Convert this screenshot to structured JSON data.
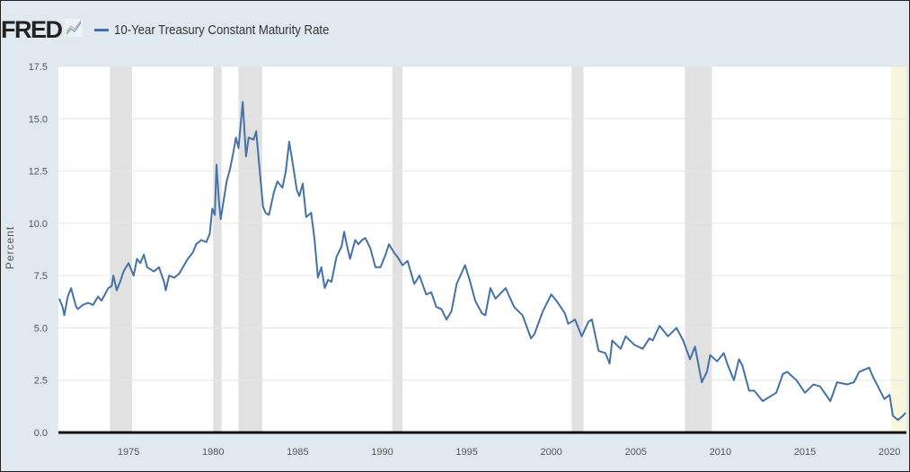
{
  "header": {
    "logo": "FRED",
    "logo_icon": "chart-line-icon"
  },
  "chart_data": {
    "type": "line",
    "title": "10-Year Treasury Constant Maturity Rate",
    "xlabel": "",
    "ylabel": "Percent",
    "xlim": [
      1970.85,
      2021.0
    ],
    "ylim": [
      0,
      17.5
    ],
    "yticks": [
      "0.0",
      "2.5",
      "5.0",
      "7.5",
      "10.0",
      "12.5",
      "15.0",
      "17.5"
    ],
    "xticks": [
      "1975",
      "1980",
      "1985",
      "1990",
      "1995",
      "2000",
      "2005",
      "2010",
      "2015",
      "2020"
    ],
    "grid": true,
    "legend": "top-left",
    "line_color": "#4572a7",
    "recessions": [
      [
        1973.9,
        1975.2
      ],
      [
        1980.0,
        1980.5
      ],
      [
        1981.5,
        1982.9
      ],
      [
        1990.6,
        1991.2
      ],
      [
        2001.2,
        2001.9
      ],
      [
        2007.9,
        2009.5
      ]
    ],
    "current_recession": [
      2020.1,
      2021.0
    ],
    "series": [
      {
        "name": "10-Year Treasury Constant Maturity Rate",
        "points": [
          [
            1970.9,
            6.4
          ],
          [
            1971.1,
            6.0
          ],
          [
            1971.2,
            5.6
          ],
          [
            1971.4,
            6.5
          ],
          [
            1971.6,
            6.9
          ],
          [
            1971.9,
            6.0
          ],
          [
            1972.0,
            5.9
          ],
          [
            1972.3,
            6.1
          ],
          [
            1972.6,
            6.2
          ],
          [
            1972.9,
            6.1
          ],
          [
            1973.2,
            6.5
          ],
          [
            1973.4,
            6.3
          ],
          [
            1973.6,
            6.6
          ],
          [
            1973.8,
            6.9
          ],
          [
            1974.0,
            7.0
          ],
          [
            1974.1,
            7.5
          ],
          [
            1974.3,
            6.8
          ],
          [
            1974.5,
            7.2
          ],
          [
            1974.7,
            7.7
          ],
          [
            1975.0,
            8.1
          ],
          [
            1975.3,
            7.5
          ],
          [
            1975.5,
            8.3
          ],
          [
            1975.7,
            8.1
          ],
          [
            1975.9,
            8.5
          ],
          [
            1976.1,
            7.9
          ],
          [
            1976.5,
            7.7
          ],
          [
            1976.8,
            7.9
          ],
          [
            1977.1,
            7.2
          ],
          [
            1977.2,
            6.8
          ],
          [
            1977.4,
            7.5
          ],
          [
            1977.7,
            7.4
          ],
          [
            1978.0,
            7.6
          ],
          [
            1978.5,
            8.3
          ],
          [
            1978.8,
            8.6
          ],
          [
            1979.0,
            9.0
          ],
          [
            1979.3,
            9.2
          ],
          [
            1979.6,
            9.1
          ],
          [
            1979.8,
            9.5
          ],
          [
            1979.95,
            10.7
          ],
          [
            1980.1,
            10.4
          ],
          [
            1980.2,
            12.8
          ],
          [
            1980.35,
            11.0
          ],
          [
            1980.45,
            10.2
          ],
          [
            1980.8,
            12.0
          ],
          [
            1981.0,
            12.6
          ],
          [
            1981.2,
            13.4
          ],
          [
            1981.35,
            14.1
          ],
          [
            1981.5,
            13.6
          ],
          [
            1981.75,
            15.8
          ],
          [
            1981.95,
            13.2
          ],
          [
            1982.1,
            14.1
          ],
          [
            1982.4,
            14.0
          ],
          [
            1982.55,
            14.4
          ],
          [
            1982.7,
            13.0
          ],
          [
            1982.95,
            10.8
          ],
          [
            1983.1,
            10.5
          ],
          [
            1983.3,
            10.4
          ],
          [
            1983.6,
            11.5
          ],
          [
            1983.8,
            12.0
          ],
          [
            1984.1,
            11.7
          ],
          [
            1984.3,
            12.5
          ],
          [
            1984.5,
            13.9
          ],
          [
            1984.7,
            12.9
          ],
          [
            1984.95,
            11.6
          ],
          [
            1985.1,
            11.3
          ],
          [
            1985.3,
            11.9
          ],
          [
            1985.5,
            10.3
          ],
          [
            1985.8,
            10.5
          ],
          [
            1986.0,
            9.2
          ],
          [
            1986.2,
            7.4
          ],
          [
            1986.4,
            7.9
          ],
          [
            1986.6,
            6.9
          ],
          [
            1986.8,
            7.3
          ],
          [
            1987.0,
            7.2
          ],
          [
            1987.3,
            8.4
          ],
          [
            1987.6,
            8.9
          ],
          [
            1987.75,
            9.6
          ],
          [
            1987.9,
            9.0
          ],
          [
            1988.1,
            8.3
          ],
          [
            1988.4,
            9.2
          ],
          [
            1988.6,
            9.0
          ],
          [
            1988.8,
            9.2
          ],
          [
            1989.0,
            9.3
          ],
          [
            1989.3,
            8.8
          ],
          [
            1989.6,
            7.9
          ],
          [
            1989.9,
            7.9
          ],
          [
            1990.2,
            8.5
          ],
          [
            1990.4,
            9.0
          ],
          [
            1990.7,
            8.6
          ],
          [
            1990.9,
            8.4
          ],
          [
            1991.2,
            8.0
          ],
          [
            1991.5,
            8.2
          ],
          [
            1991.9,
            7.1
          ],
          [
            1992.2,
            7.5
          ],
          [
            1992.6,
            6.6
          ],
          [
            1992.9,
            6.7
          ],
          [
            1993.2,
            6.0
          ],
          [
            1993.5,
            5.9
          ],
          [
            1993.8,
            5.4
          ],
          [
            1994.1,
            5.8
          ],
          [
            1994.4,
            7.1
          ],
          [
            1994.9,
            8.0
          ],
          [
            1995.2,
            7.2
          ],
          [
            1995.5,
            6.3
          ],
          [
            1995.9,
            5.7
          ],
          [
            1996.1,
            5.6
          ],
          [
            1996.4,
            6.9
          ],
          [
            1996.7,
            6.4
          ],
          [
            1997.3,
            6.9
          ],
          [
            1997.8,
            6.0
          ],
          [
            1998.3,
            5.6
          ],
          [
            1998.8,
            4.5
          ],
          [
            1999.0,
            4.7
          ],
          [
            1999.5,
            5.8
          ],
          [
            2000.0,
            6.6
          ],
          [
            2000.3,
            6.3
          ],
          [
            2000.8,
            5.7
          ],
          [
            2001.0,
            5.2
          ],
          [
            2001.4,
            5.4
          ],
          [
            2001.8,
            4.6
          ],
          [
            2002.2,
            5.3
          ],
          [
            2002.4,
            5.4
          ],
          [
            2002.8,
            3.9
          ],
          [
            2003.2,
            3.8
          ],
          [
            2003.45,
            3.3
          ],
          [
            2003.6,
            4.4
          ],
          [
            2004.1,
            4.0
          ],
          [
            2004.4,
            4.6
          ],
          [
            2004.9,
            4.2
          ],
          [
            2005.4,
            4.0
          ],
          [
            2005.8,
            4.5
          ],
          [
            2006.0,
            4.4
          ],
          [
            2006.4,
            5.1
          ],
          [
            2006.9,
            4.6
          ],
          [
            2007.4,
            5.0
          ],
          [
            2007.8,
            4.4
          ],
          [
            2008.2,
            3.5
          ],
          [
            2008.5,
            4.1
          ],
          [
            2008.9,
            2.4
          ],
          [
            2009.2,
            2.9
          ],
          [
            2009.4,
            3.7
          ],
          [
            2009.8,
            3.4
          ],
          [
            2010.2,
            3.8
          ],
          [
            2010.4,
            3.3
          ],
          [
            2010.8,
            2.5
          ],
          [
            2011.1,
            3.5
          ],
          [
            2011.3,
            3.2
          ],
          [
            2011.7,
            2.0
          ],
          [
            2012.0,
            2.0
          ],
          [
            2012.5,
            1.5
          ],
          [
            2012.9,
            1.7
          ],
          [
            2013.3,
            1.9
          ],
          [
            2013.7,
            2.8
          ],
          [
            2013.95,
            2.9
          ],
          [
            2014.5,
            2.5
          ],
          [
            2015.0,
            1.9
          ],
          [
            2015.5,
            2.3
          ],
          [
            2015.9,
            2.2
          ],
          [
            2016.5,
            1.5
          ],
          [
            2016.9,
            2.4
          ],
          [
            2017.5,
            2.3
          ],
          [
            2017.9,
            2.4
          ],
          [
            2018.2,
            2.9
          ],
          [
            2018.8,
            3.1
          ],
          [
            2019.0,
            2.7
          ],
          [
            2019.7,
            1.6
          ],
          [
            2020.0,
            1.8
          ],
          [
            2020.2,
            0.8
          ],
          [
            2020.5,
            0.6
          ],
          [
            2020.8,
            0.8
          ],
          [
            2020.95,
            0.95
          ]
        ]
      }
    ]
  }
}
